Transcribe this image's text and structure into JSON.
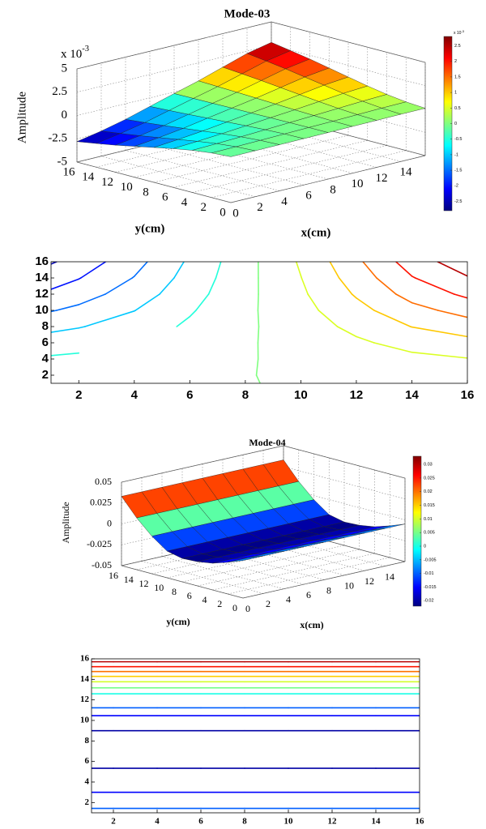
{
  "chart_data": [
    {
      "type": "surface",
      "title": "Mode-03",
      "xlabel": "x(cm)",
      "ylabel": "y(cm)",
      "zlabel": "Amplitude",
      "zscale_base": "x 10",
      "zscale_exp": "-3",
      "x": [
        0,
        2,
        4,
        6,
        8,
        10,
        12,
        14,
        16
      ],
      "y": [
        0,
        2,
        4,
        6,
        8,
        10,
        12,
        14,
        16
      ],
      "z": [
        [
          -0.08,
          -0.07,
          -0.05,
          -0.03,
          -0.01,
          0.02,
          0.04,
          0.07,
          0.08
        ],
        [
          -0.22,
          -0.18,
          -0.13,
          -0.07,
          -0.01,
          0.04,
          0.11,
          0.18,
          0.22
        ],
        [
          -0.48,
          -0.39,
          -0.29,
          -0.16,
          -0.03,
          0.1,
          0.24,
          0.38,
          0.48
        ],
        [
          -0.84,
          -0.69,
          -0.5,
          -0.28,
          -0.05,
          0.17,
          0.42,
          0.67,
          0.84
        ],
        [
          -1.26,
          -1.03,
          -0.76,
          -0.42,
          -0.08,
          0.25,
          0.63,
          1.01,
          1.26
        ],
        [
          -1.68,
          -1.38,
          -1.01,
          -0.55,
          -0.1,
          0.34,
          0.84,
          1.34,
          1.68
        ],
        [
          -2.1,
          -1.72,
          -1.26,
          -0.69,
          -0.13,
          0.42,
          1.05,
          1.68,
          2.1
        ],
        [
          -2.46,
          -2.02,
          -1.48,
          -0.81,
          -0.15,
          0.49,
          1.23,
          1.97,
          2.46
        ],
        [
          -2.8,
          -2.3,
          -1.68,
          -0.92,
          -0.17,
          0.56,
          1.4,
          2.24,
          2.8
        ]
      ],
      "xlim": [
        0,
        16
      ],
      "ylim": [
        0,
        16
      ],
      "zlim": [
        -5,
        5
      ],
      "xticks": [
        0,
        2,
        4,
        6,
        8,
        10,
        12,
        14
      ],
      "yticks": [
        0,
        2,
        4,
        6,
        8,
        10,
        12,
        14,
        16
      ],
      "zticks": [
        -5,
        -2.5,
        0,
        2.5,
        5
      ],
      "colormap": "jet",
      "clim": [
        -2.8,
        2.8
      ],
      "cbar_ticks": [
        -2.5,
        -2,
        -1.5,
        -1,
        -0.5,
        0,
        0.5,
        1,
        1.5,
        2,
        2.5
      ],
      "cbar_scale_base": "x 10",
      "cbar_scale_exp": "-3"
    },
    {
      "type": "contour",
      "x": [
        0,
        2,
        4,
        6,
        8,
        10,
        12,
        14,
        16
      ],
      "y": [
        0,
        2,
        4,
        6,
        8,
        10,
        12,
        14,
        16
      ],
      "z": [
        [
          -0.08,
          -0.07,
          -0.05,
          -0.03,
          -0.01,
          0.02,
          0.04,
          0.07,
          0.08
        ],
        [
          -0.22,
          -0.18,
          -0.13,
          -0.07,
          -0.01,
          0.04,
          0.11,
          0.18,
          0.22
        ],
        [
          -0.48,
          -0.39,
          -0.29,
          -0.16,
          -0.03,
          0.1,
          0.24,
          0.38,
          0.48
        ],
        [
          -0.84,
          -0.69,
          -0.5,
          -0.28,
          -0.05,
          0.17,
          0.42,
          0.67,
          0.84
        ],
        [
          -1.26,
          -1.03,
          -0.76,
          -0.42,
          -0.08,
          0.25,
          0.63,
          1.01,
          1.26
        ],
        [
          -1.68,
          -1.38,
          -1.01,
          -0.55,
          -0.1,
          0.34,
          0.84,
          1.34,
          1.68
        ],
        [
          -2.1,
          -1.72,
          -1.26,
          -0.69,
          -0.13,
          0.42,
          1.05,
          1.68,
          2.1
        ],
        [
          -2.46,
          -2.02,
          -1.48,
          -0.81,
          -0.15,
          0.49,
          1.23,
          1.97,
          2.46
        ],
        [
          -2.8,
          -2.3,
          -1.68,
          -0.92,
          -0.17,
          0.56,
          1.4,
          2.24,
          2.8
        ]
      ],
      "levels": [
        -2.5,
        -2,
        -1.5,
        -1,
        -0.5,
        0,
        0.5,
        1,
        1.5,
        2,
        2.5
      ],
      "xlim": [
        1,
        16
      ],
      "ylim": [
        1,
        16
      ],
      "xticks": [
        2,
        4,
        6,
        8,
        10,
        12,
        14,
        16
      ],
      "yticks": [
        2,
        4,
        6,
        8,
        10,
        12,
        14,
        16
      ],
      "colormap": "jet",
      "clim": [
        -2.8,
        2.8
      ]
    },
    {
      "type": "surface",
      "title": "Mode-04",
      "xlabel": "x(cm)",
      "ylabel": "y(cm)",
      "zlabel": "Amplitude",
      "x": [
        0,
        2,
        4,
        6,
        8,
        10,
        12,
        14,
        16
      ],
      "y": [
        0,
        2,
        4,
        6,
        8,
        10,
        12,
        14,
        16
      ],
      "z": [
        [
          -0.005,
          -0.005,
          -0.005,
          -0.005,
          -0.005,
          -0.005,
          -0.005,
          -0.005,
          -0.005
        ],
        [
          -0.012,
          -0.012,
          -0.012,
          -0.012,
          -0.012,
          -0.012,
          -0.012,
          -0.012,
          -0.012
        ],
        [
          -0.018,
          -0.018,
          -0.018,
          -0.018,
          -0.018,
          -0.018,
          -0.018,
          -0.018,
          -0.018
        ],
        [
          -0.021,
          -0.021,
          -0.021,
          -0.021,
          -0.021,
          -0.021,
          -0.021,
          -0.021,
          -0.021
        ],
        [
          -0.022,
          -0.022,
          -0.022,
          -0.022,
          -0.022,
          -0.022,
          -0.022,
          -0.022,
          -0.022
        ],
        [
          -0.018,
          -0.018,
          -0.018,
          -0.018,
          -0.018,
          -0.018,
          -0.018,
          -0.018,
          -0.018
        ],
        [
          -0.005,
          -0.005,
          -0.005,
          -0.005,
          -0.005,
          -0.005,
          -0.005,
          -0.005,
          -0.005
        ],
        [
          0.012,
          0.012,
          0.012,
          0.012,
          0.012,
          0.012,
          0.012,
          0.012,
          0.012
        ],
        [
          0.033,
          0.033,
          0.033,
          0.033,
          0.033,
          0.033,
          0.033,
          0.033,
          0.033
        ]
      ],
      "xlim": [
        0,
        16
      ],
      "ylim": [
        0,
        16
      ],
      "zlim": [
        -0.05,
        0.05
      ],
      "xticks": [
        0,
        2,
        4,
        6,
        8,
        10,
        12,
        14
      ],
      "yticks": [
        0,
        2,
        4,
        6,
        8,
        10,
        12,
        14,
        16
      ],
      "zticks": [
        -0.05,
        -0.025,
        0,
        0.025,
        0.05
      ],
      "colormap": "jet",
      "clim": [
        -0.022,
        0.033
      ],
      "cbar_ticks": [
        -0.02,
        -0.015,
        -0.01,
        -0.005,
        0,
        0.005,
        0.01,
        0.015,
        0.02,
        0.025,
        0.03
      ]
    },
    {
      "type": "contour",
      "x": [
        0,
        2,
        4,
        6,
        8,
        10,
        12,
        14,
        16
      ],
      "y": [
        0,
        2,
        4,
        6,
        8,
        10,
        12,
        14,
        16
      ],
      "z": [
        [
          -0.005,
          -0.005,
          -0.005,
          -0.005,
          -0.005,
          -0.005,
          -0.005,
          -0.005,
          -0.005
        ],
        [
          -0.012,
          -0.012,
          -0.012,
          -0.012,
          -0.012,
          -0.012,
          -0.012,
          -0.012,
          -0.012
        ],
        [
          -0.018,
          -0.018,
          -0.018,
          -0.018,
          -0.018,
          -0.018,
          -0.018,
          -0.018,
          -0.018
        ],
        [
          -0.021,
          -0.021,
          -0.021,
          -0.021,
          -0.021,
          -0.021,
          -0.021,
          -0.021,
          -0.021
        ],
        [
          -0.022,
          -0.022,
          -0.022,
          -0.022,
          -0.022,
          -0.022,
          -0.022,
          -0.022,
          -0.022
        ],
        [
          -0.018,
          -0.018,
          -0.018,
          -0.018,
          -0.018,
          -0.018,
          -0.018,
          -0.018,
          -0.018
        ],
        [
          -0.005,
          -0.005,
          -0.005,
          -0.005,
          -0.005,
          -0.005,
          -0.005,
          -0.005,
          -0.005
        ],
        [
          0.012,
          0.012,
          0.012,
          0.012,
          0.012,
          0.012,
          0.012,
          0.012,
          0.012
        ],
        [
          0.033,
          0.033,
          0.033,
          0.033,
          0.033,
          0.033,
          0.033,
          0.033,
          0.033
        ]
      ],
      "levels": [
        -0.02,
        -0.015,
        -0.01,
        -0.005,
        0,
        0.005,
        0.01,
        0.015,
        0.02,
        0.025,
        0.03
      ],
      "xlim": [
        1,
        16
      ],
      "ylim": [
        1,
        16
      ],
      "xticks": [
        2,
        4,
        6,
        8,
        10,
        12,
        14,
        16
      ],
      "yticks": [
        2,
        4,
        6,
        8,
        10,
        12,
        14,
        16
      ],
      "colormap": "jet",
      "clim": [
        -0.022,
        0.033
      ]
    }
  ]
}
